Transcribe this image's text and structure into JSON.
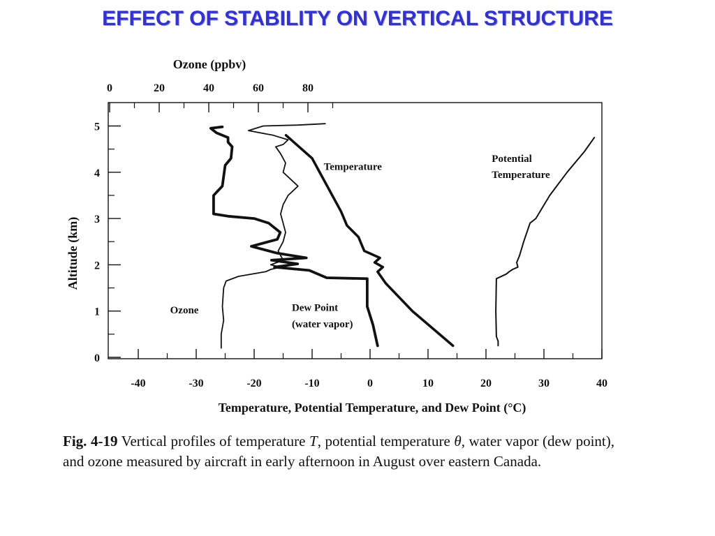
{
  "slide": {
    "title": "EFFECT OF STABILITY ON VERTICAL STRUCTURE"
  },
  "chart_data": {
    "type": "line",
    "title": "",
    "ylabel": "Altitude (km)",
    "xlabel": "Temperature, Potential Temperature, and Dew Point (°C)",
    "x2label": "Ozone (ppbv)",
    "ylim": [
      0,
      5.5
    ],
    "xlim": [
      -45,
      40
    ],
    "x2lim": [
      0,
      100
    ],
    "yticks": [
      "0",
      "1",
      "2",
      "3",
      "4",
      "5"
    ],
    "xticks": [
      "-40",
      "-30",
      "-20",
      "-10",
      "0",
      "10",
      "20",
      "30",
      "40"
    ],
    "x2ticks": [
      "0",
      "20",
      "40",
      "60",
      "80"
    ],
    "grid": false,
    "series": [
      {
        "name": "Temperature",
        "axis": "bottom",
        "points": [
          [
            14.3,
            0.25
          ],
          [
            7.3,
            1.0
          ],
          [
            2.7,
            1.6
          ],
          [
            1.3,
            1.85
          ],
          [
            2.2,
            1.95
          ],
          [
            0.8,
            2.05
          ],
          [
            1.7,
            2.15
          ],
          [
            -1.0,
            2.3
          ],
          [
            -1.5,
            2.45
          ],
          [
            -2.0,
            2.6
          ],
          [
            -4.0,
            2.85
          ],
          [
            -4.5,
            3.0
          ],
          [
            -5.0,
            3.15
          ],
          [
            -10.0,
            4.3
          ],
          [
            -14.5,
            4.8
          ]
        ]
      },
      {
        "name": "Potential Temperature",
        "axis": "bottom",
        "points": [
          [
            22.1,
            0.25
          ],
          [
            22.1,
            0.35
          ],
          [
            21.8,
            0.45
          ],
          [
            21.7,
            1.0
          ],
          [
            21.8,
            1.7
          ],
          [
            23.5,
            1.8
          ],
          [
            24.0,
            1.85
          ],
          [
            24.6,
            1.9
          ],
          [
            25.5,
            1.95
          ],
          [
            25.3,
            2.05
          ],
          [
            25.8,
            2.2
          ],
          [
            26.5,
            2.5
          ],
          [
            27.6,
            2.9
          ],
          [
            28.6,
            3.0
          ],
          [
            31.0,
            3.5
          ],
          [
            34.0,
            4.0
          ],
          [
            37.0,
            4.45
          ],
          [
            38.7,
            4.75
          ]
        ]
      },
      {
        "name": "Dew Point (water vapor)",
        "axis": "bottom",
        "points": [
          [
            1.3,
            0.25
          ],
          [
            0.5,
            0.7
          ],
          [
            -0.5,
            1.1
          ],
          [
            -0.5,
            1.7
          ],
          [
            -7.5,
            1.72
          ],
          [
            -10.5,
            1.88
          ],
          [
            -16.5,
            1.95
          ],
          [
            -12.5,
            2.02
          ],
          [
            -17.0,
            2.1
          ],
          [
            -11.0,
            2.15
          ],
          [
            -16.0,
            2.25
          ],
          [
            -20.5,
            2.4
          ],
          [
            -16.0,
            2.55
          ],
          [
            -15.5,
            2.7
          ],
          [
            -17.5,
            2.9
          ],
          [
            -20.0,
            3.0
          ],
          [
            -24.5,
            3.05
          ],
          [
            -27.0,
            3.1
          ],
          [
            -27.0,
            3.5
          ],
          [
            -25.5,
            3.7
          ],
          [
            -25.0,
            4.15
          ],
          [
            -24.0,
            4.3
          ],
          [
            -23.8,
            4.55
          ],
          [
            -24.5,
            4.65
          ],
          [
            -24.5,
            4.75
          ],
          [
            -26.5,
            4.85
          ],
          [
            -27.5,
            4.95
          ],
          [
            -25.5,
            4.98
          ]
        ]
      },
      {
        "name": "Ozone",
        "axis": "top",
        "points": [
          [
            45,
            0.2
          ],
          [
            45,
            0.5
          ],
          [
            46,
            0.8
          ],
          [
            45.5,
            1.1
          ],
          [
            46,
            1.5
          ],
          [
            47,
            1.65
          ],
          [
            52,
            1.75
          ],
          [
            63,
            1.85
          ],
          [
            65,
            1.9
          ],
          [
            69,
            1.95
          ],
          [
            65,
            2.0
          ],
          [
            70,
            2.1
          ],
          [
            69,
            2.2
          ],
          [
            68,
            2.3
          ],
          [
            70,
            2.5
          ],
          [
            71,
            2.7
          ],
          [
            70,
            2.9
          ],
          [
            69,
            3.1
          ],
          [
            70,
            3.3
          ],
          [
            72,
            3.5
          ],
          [
            76,
            3.7
          ],
          [
            73,
            3.85
          ],
          [
            70,
            4.0
          ],
          [
            71,
            4.2
          ],
          [
            69,
            4.4
          ],
          [
            67,
            4.55
          ],
          [
            70,
            4.6
          ],
          [
            72,
            4.7
          ],
          [
            66,
            4.8
          ],
          [
            56,
            4.9
          ],
          [
            62,
            5.0
          ],
          [
            76,
            5.02
          ],
          [
            87,
            5.05
          ]
        ]
      }
    ],
    "annotations": [
      {
        "text": "Temperature",
        "x": -8,
        "y": 4.05
      },
      {
        "text": "Potential",
        "x": 21,
        "y": 4.22
      },
      {
        "text": "Temperature",
        "x": 21,
        "y": 3.88
      },
      {
        "text": "Ozone",
        "x": -34.5,
        "y": 0.95
      },
      {
        "text": "Dew Point",
        "x": -13.5,
        "y": 1.0
      },
      {
        "text": "(water vapor)",
        "x": -13.5,
        "y": 0.65
      }
    ]
  },
  "caption": {
    "label": "Fig. 4-19",
    "part1": " Vertical profiles of temperature ",
    "sym_T": "T",
    "part2": ", potential temperature ",
    "sym_theta": "θ",
    "part3": ", water vapor (dew point), and ozone measured by aircraft in early afternoon in August over eastern Canada."
  }
}
